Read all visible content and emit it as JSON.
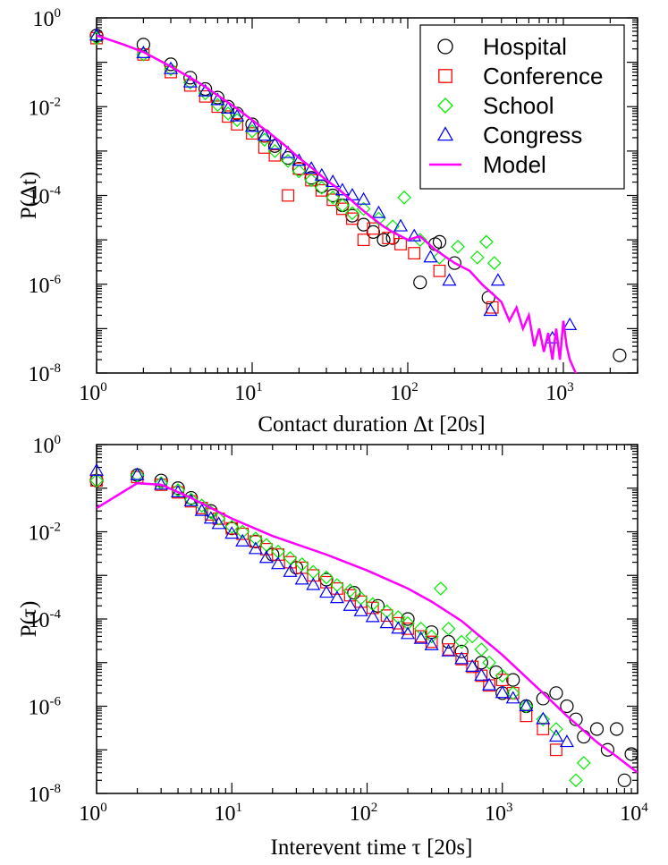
{
  "colors": {
    "hospital": "#000000",
    "conference": "#ff0000",
    "school": "#00ee00",
    "congress": "#0000ff",
    "model": "#ff00ff"
  },
  "chart_data": [
    {
      "type": "scatter",
      "title": "",
      "xlabel": "Contact duration Δt [20s]",
      "ylabel": "P(Δt)",
      "xscale": "log",
      "yscale": "log",
      "xlim": [
        1,
        3000
      ],
      "ylim": [
        1e-08,
        1
      ],
      "x_ticks": [
        {
          "base": "10",
          "exp": "0"
        },
        {
          "base": "10",
          "exp": "1"
        },
        {
          "base": "10",
          "exp": "2"
        },
        {
          "base": "10",
          "exp": "3"
        }
      ],
      "y_ticks": [
        {
          "base": "10",
          "exp": "0"
        },
        {
          "base": "10",
          "exp": "-2"
        },
        {
          "base": "10",
          "exp": "-4"
        },
        {
          "base": "10",
          "exp": "-6"
        },
        {
          "base": "10",
          "exp": "-8"
        }
      ],
      "legend": {
        "position": "top-right",
        "entries": [
          {
            "label": "Hospital",
            "marker": "circle",
            "color": "#000000"
          },
          {
            "label": "Conference",
            "marker": "square",
            "color": "#ff0000"
          },
          {
            "label": "School",
            "marker": "diamond",
            "color": "#00ee00"
          },
          {
            "label": "Congress",
            "marker": "triangle",
            "color": "#0000ff"
          },
          {
            "label": "Model",
            "marker": "line",
            "color": "#ff00ff"
          }
        ]
      },
      "series": [
        {
          "name": "Hospital",
          "marker": "circle",
          "color": "#000000",
          "x": [
            1,
            2,
            3,
            4,
            5,
            6,
            7,
            8,
            10,
            12,
            14,
            17,
            20,
            24,
            28,
            33,
            38,
            44,
            52,
            60,
            70,
            80,
            120,
            150,
            160,
            200,
            330,
            2300
          ],
          "y": [
            0.4,
            0.25,
            0.09,
            0.045,
            0.025,
            0.016,
            0.01,
            0.007,
            0.004,
            0.0022,
            0.0013,
            0.0007,
            0.0004,
            0.00025,
            0.00016,
            0.0001,
            6e-05,
            3.5e-05,
            2.2e-05,
            1.5e-05,
            1e-05,
            1.1e-05,
            1.1e-06,
            8e-06,
            9e-06,
            3e-06,
            5e-07,
            2.5e-08
          ]
        },
        {
          "name": "Conference",
          "marker": "square",
          "color": "#ff0000",
          "x": [
            1,
            2,
            3,
            4,
            5,
            6,
            7,
            8,
            10,
            12,
            14,
            17,
            20,
            24,
            28,
            33,
            38,
            44,
            52,
            60,
            75,
            90,
            110,
            160,
            350
          ],
          "y": [
            0.35,
            0.15,
            0.06,
            0.03,
            0.017,
            0.01,
            0.006,
            0.004,
            0.0025,
            0.0012,
            0.0008,
            0.0001,
            0.0004,
            0.00022,
            0.00013,
            8e-05,
            5e-05,
            3e-05,
            1e-05,
            1.8e-05,
            1.1e-05,
            8e-06,
            5e-06,
            2e-06,
            3e-07
          ]
        },
        {
          "name": "School",
          "marker": "diamond",
          "color": "#00ee00",
          "x": [
            1,
            2,
            3,
            4,
            5,
            6,
            7,
            8,
            10,
            12,
            14,
            17,
            20,
            24,
            28,
            33,
            38,
            44,
            52,
            65,
            80,
            95,
            120,
            160,
            210,
            280,
            320,
            360
          ],
          "y": [
            0.35,
            0.15,
            0.07,
            0.035,
            0.02,
            0.011,
            0.007,
            0.005,
            0.0028,
            0.0018,
            0.001,
            0.0006,
            0.00035,
            0.00022,
            0.00015,
            9e-05,
            6e-05,
            4e-05,
            5e-05,
            3e-05,
            2e-05,
            9e-05,
            1e-05,
            4e-06,
            7e-06,
            4e-06,
            9e-06,
            3e-06
          ]
        },
        {
          "name": "Congress",
          "marker": "triangle",
          "color": "#0000ff",
          "x": [
            1,
            2,
            3,
            4,
            5,
            6,
            7,
            8,
            10,
            12,
            14,
            17,
            20,
            24,
            28,
            33,
            38,
            44,
            52,
            65,
            90,
            110,
            140,
            185,
            340,
            380,
            850,
            1100
          ],
          "y": [
            0.4,
            0.16,
            0.07,
            0.035,
            0.022,
            0.014,
            0.009,
            0.006,
            0.0035,
            0.0022,
            0.0014,
            0.0009,
            0.0006,
            0.0004,
            0.00028,
            0.0002,
            0.00013,
            0.0001,
            8e-05,
            4e-05,
            2e-05,
            1.2e-05,
            4e-06,
            1.2e-06,
            2.5e-07,
            1.2e-06,
            6e-08,
            1.2e-07
          ]
        },
        {
          "name": "Model",
          "marker": "line",
          "color": "#ff00ff",
          "x": [
            1,
            1.5,
            2,
            3,
            4,
            5,
            6,
            8,
            10,
            13,
            16,
            20,
            25,
            30,
            35,
            40,
            45,
            50,
            60,
            70,
            80,
            100,
            120,
            150,
            200,
            250,
            300,
            400,
            450,
            500,
            550,
            600,
            650,
            700,
            750,
            800,
            850,
            900,
            950,
            1000,
            1050,
            1100,
            1200,
            1350
          ],
          "y": [
            0.4,
            0.25,
            0.17,
            0.08,
            0.045,
            0.028,
            0.018,
            0.009,
            0.005,
            0.0025,
            0.0014,
            0.0007,
            0.00038,
            0.00022,
            0.00015,
            0.0001,
            7e-05,
            5e-05,
            3e-05,
            2e-05,
            1.5e-05,
            1e-05,
            1.2e-05,
            6e-06,
            3e-06,
            2e-06,
            1e-06,
            4e-07,
            1.5e-07,
            3e-07,
            1e-07,
            2e-07,
            4e-08,
            1e-07,
            3e-08,
            8e-08,
            2e-08,
            1e-07,
            2e-08,
            1.5e-07,
            4e-08,
            2e-08,
            1e-08,
            4e-09
          ]
        }
      ]
    },
    {
      "type": "scatter",
      "title": "",
      "xlabel": "Interevent time τ [20s]",
      "ylabel": "P(τ)",
      "xscale": "log",
      "yscale": "log",
      "xlim": [
        1,
        10000
      ],
      "ylim": [
        1e-08,
        1
      ],
      "x_ticks": [
        {
          "base": "10",
          "exp": "0"
        },
        {
          "base": "10",
          "exp": "1"
        },
        {
          "base": "10",
          "exp": "2"
        },
        {
          "base": "10",
          "exp": "3"
        },
        {
          "base": "10",
          "exp": "4"
        }
      ],
      "y_ticks": [
        {
          "base": "10",
          "exp": "0"
        },
        {
          "base": "10",
          "exp": "-2"
        },
        {
          "base": "10",
          "exp": "-4"
        },
        {
          "base": "10",
          "exp": "-6"
        },
        {
          "base": "10",
          "exp": "-8"
        }
      ],
      "series": [
        {
          "name": "Hospital",
          "marker": "circle",
          "color": "#000000",
          "x": [
            1,
            2,
            3,
            4,
            5,
            7,
            10,
            15,
            20,
            30,
            50,
            80,
            120,
            200,
            300,
            400,
            500,
            700,
            900,
            1000,
            1200,
            1500,
            2000,
            2500,
            3000,
            3500,
            4000,
            5000,
            6000,
            7000,
            8000,
            9000
          ],
          "y": [
            0.15,
            0.2,
            0.15,
            0.1,
            0.06,
            0.03,
            0.012,
            0.006,
            0.003,
            0.0015,
            0.0008,
            0.0004,
            0.0002,
            0.0001,
            5e-05,
            3e-05,
            1.8e-05,
            1e-05,
            6e-06,
            2e-06,
            4e-06,
            1e-06,
            1.5e-06,
            2e-06,
            1e-06,
            5e-07,
            2e-07,
            3e-07,
            1e-07,
            3e-07,
            2e-08,
            8e-08
          ]
        },
        {
          "name": "Conference",
          "marker": "square",
          "color": "#ff0000",
          "x": [
            1,
            2,
            3,
            4,
            5,
            6,
            7,
            8,
            10,
            12,
            15,
            18,
            22,
            27,
            33,
            40,
            50,
            60,
            75,
            90,
            110,
            140,
            170,
            200,
            250,
            300,
            400,
            500,
            600,
            700,
            800,
            1000,
            1200,
            1500,
            2000,
            2500
          ],
          "y": [
            0.15,
            0.18,
            0.12,
            0.08,
            0.05,
            0.035,
            0.025,
            0.02,
            0.012,
            0.009,
            0.006,
            0.004,
            0.003,
            0.002,
            0.0015,
            0.001,
            0.0007,
            0.0005,
            0.00035,
            0.00025,
            0.00018,
            0.00012,
            8e-05,
            6e-05,
            4e-05,
            3e-05,
            2e-05,
            1.2e-05,
            8e-06,
            5e-06,
            3e-06,
            4e-06,
            2e-06,
            6e-07,
            3e-07,
            1e-07
          ]
        },
        {
          "name": "School",
          "marker": "diamond",
          "color": "#00ee00",
          "x": [
            1,
            2,
            3,
            4,
            5,
            6,
            7,
            8,
            10,
            12,
            15,
            18,
            22,
            27,
            33,
            40,
            50,
            60,
            75,
            90,
            110,
            140,
            170,
            200,
            250,
            300,
            350,
            400,
            500,
            600,
            700,
            800,
            1000,
            1200,
            1500,
            2000,
            2500,
            3500,
            4000
          ],
          "y": [
            0.15,
            0.2,
            0.13,
            0.09,
            0.055,
            0.04,
            0.028,
            0.02,
            0.013,
            0.01,
            0.007,
            0.005,
            0.0035,
            0.0025,
            0.0018,
            0.0012,
            0.0009,
            0.0006,
            0.00045,
            0.0003,
            0.00022,
            0.00015,
            0.00011,
            8e-05,
            6e-05,
            4e-05,
            0.0005,
            6e-05,
            3e-05,
            4e-05,
            2e-05,
            1e-05,
            5e-06,
            2e-06,
            1e-06,
            5e-07,
            3e-07,
            2e-08,
            5e-08
          ]
        },
        {
          "name": "Congress",
          "marker": "triangle",
          "color": "#0000ff",
          "x": [
            1,
            2,
            3,
            4,
            5,
            6,
            7,
            8,
            10,
            12,
            15,
            18,
            22,
            27,
            33,
            40,
            50,
            60,
            75,
            90,
            110,
            140,
            170,
            200,
            250,
            300,
            400,
            500,
            600,
            700,
            800,
            1000,
            1200,
            1500,
            2000,
            2500,
            3000
          ],
          "y": [
            0.25,
            0.2,
            0.12,
            0.08,
            0.05,
            0.03,
            0.02,
            0.015,
            0.009,
            0.006,
            0.004,
            0.0025,
            0.0018,
            0.0012,
            0.0008,
            0.0006,
            0.0004,
            0.0003,
            0.0002,
            0.00015,
            0.00011,
            8e-05,
            6e-05,
            4.5e-05,
            3.5e-05,
            2.5e-05,
            1.8e-05,
            1.2e-05,
            8e-06,
            5e-06,
            3e-06,
            2e-06,
            1.5e-06,
            1e-06,
            5e-07,
            2e-07,
            1.5e-07
          ]
        },
        {
          "name": "Model",
          "marker": "line",
          "color": "#ff00ff",
          "x": [
            1,
            2,
            3,
            5,
            10,
            20,
            50,
            100,
            200,
            300,
            500,
            1000,
            2000,
            3000,
            5000,
            7000,
            10000
          ],
          "y": [
            0.035,
            0.13,
            0.12,
            0.06,
            0.02,
            0.008,
            0.003,
            0.0013,
            0.0005,
            0.00025,
            9e-05,
            1.5e-05,
            2e-06,
            6e-07,
            1.5e-07,
            7e-08,
            3e-08
          ]
        }
      ]
    }
  ]
}
